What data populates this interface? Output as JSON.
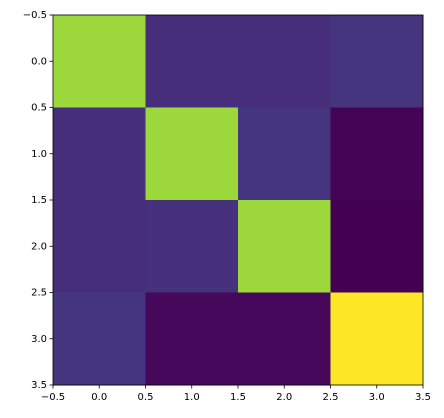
{
  "chart_data": {
    "type": "heatmap",
    "colormap": "viridis",
    "values": [
      [
        0.85,
        0.13,
        0.13,
        0.15
      ],
      [
        0.13,
        0.85,
        0.15,
        0.01
      ],
      [
        0.13,
        0.14,
        0.85,
        0.0
      ],
      [
        0.15,
        0.02,
        0.02,
        1.0
      ]
    ],
    "clim": [
      0,
      1
    ],
    "xlim": [
      -0.5,
      3.5
    ],
    "ylim": [
      3.5,
      -0.5
    ],
    "xticks": [
      {
        "value": -0.5,
        "label": "−0.5"
      },
      {
        "value": 0,
        "label": "0.0"
      },
      0.5,
      {
        "value": 1,
        "label": "1.0"
      },
      1.5,
      {
        "value": 2,
        "label": "2.0"
      },
      2.5,
      {
        "value": 3,
        "label": "3.0"
      },
      3.5
    ],
    "yticks": [
      {
        "value": -0.5,
        "label": "−0.5"
      },
      {
        "value": 0,
        "label": "0.0"
      },
      0.5,
      {
        "value": 1,
        "label": "1.0"
      },
      1.5,
      {
        "value": 2,
        "label": "2.0"
      },
      2.5,
      {
        "value": 3,
        "label": "3.0"
      },
      3.5
    ]
  }
}
